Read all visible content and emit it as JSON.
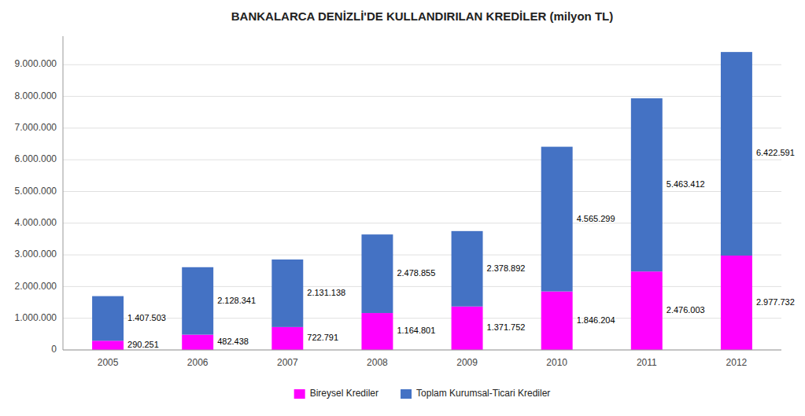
{
  "chart_data": {
    "type": "bar",
    "title": "BANKALARCA DENİZLİ'DE KULLANDIRILAN KREDİLER (milyon TL)",
    "categories": [
      "2005",
      "2006",
      "2007",
      "2008",
      "2009",
      "2010",
      "2011",
      "2012"
    ],
    "series": [
      {
        "name": "Bireysel Krediler",
        "color": "#FF00FF",
        "values": [
          290251,
          482438,
          722791,
          1164801,
          1371752,
          1846204,
          2476003,
          2977732
        ],
        "value_labels": [
          "290.251",
          "482.438",
          "722.791",
          "1.164.801",
          "1.371.752",
          "1.846.204",
          "2.476.003",
          "2.977.732"
        ]
      },
      {
        "name": "Toplam Kurumsal-Ticari Krediler",
        "color": "#4472C4",
        "values": [
          1407503,
          2128341,
          2131138,
          2478855,
          2378892,
          4565299,
          5463412,
          6422591
        ],
        "value_labels": [
          "1.407.503",
          "2.128.341",
          "2.131.138",
          "2.478.855",
          "2.378.892",
          "4.565.299",
          "5.463.412",
          "6.422.591"
        ]
      }
    ],
    "stacked": true,
    "ylim": [
      0,
      9900000
    ],
    "yticks": [
      0,
      {
        "value": 1000000,
        "label": "1.000.000"
      },
      {
        "value": 2000000,
        "label": "2.000.000"
      },
      {
        "value": 3000000,
        "label": "3.000.000"
      },
      {
        "value": 4000000,
        "label": "4.000.000"
      },
      {
        "value": 5000000,
        "label": "5.000.000"
      },
      {
        "value": 6000000,
        "label": "6.000.000"
      },
      {
        "value": 7000000,
        "label": "7.000.000"
      },
      {
        "value": 8000000,
        "label": "8.000.000"
      },
      {
        "value": 9000000,
        "label": "9.000.000"
      }
    ],
    "grid": true,
    "legend": "bottom",
    "data_labels": true
  }
}
